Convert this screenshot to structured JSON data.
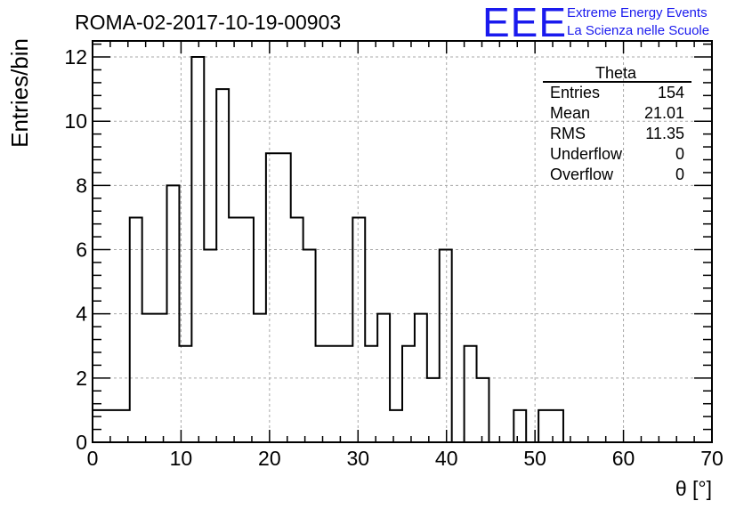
{
  "chart_data": {
    "type": "bar",
    "title": "ROMA-02-2017-10-19-00903",
    "xlabel": "θ [°]",
    "ylabel": "Entries/bin",
    "xlim": [
      0,
      70
    ],
    "ylim": [
      0,
      12.5
    ],
    "grid": true,
    "bin_width": 1.4,
    "bin_start": 0,
    "xticks": [
      0,
      10,
      20,
      30,
      40,
      50,
      60,
      70
    ],
    "yticks": [
      0,
      2,
      4,
      6,
      8,
      10,
      12
    ],
    "series": [
      {
        "values": [
          1,
          1,
          1,
          7,
          4,
          4,
          8,
          3,
          12,
          6,
          11,
          7,
          7,
          4,
          9,
          9,
          7,
          6,
          3,
          3,
          3,
          7,
          3,
          4,
          1,
          3,
          4,
          2,
          6,
          0,
          3,
          2,
          0,
          0,
          1,
          0,
          1,
          1,
          0,
          0,
          0,
          0,
          0,
          0,
          0,
          0,
          0,
          0,
          0,
          0
        ]
      }
    ],
    "stats_box": {
      "title": "Theta",
      "rows": [
        {
          "label": "Entries",
          "value": "154"
        },
        {
          "label": "Mean",
          "value": "21.01"
        },
        {
          "label": "RMS",
          "value": "11.35"
        },
        {
          "label": "Underflow",
          "value": "0"
        },
        {
          "label": "Overflow",
          "value": "0"
        }
      ]
    }
  },
  "branding": {
    "logo_text": "EEE",
    "line1": "Extreme Energy Events",
    "line2": "La Scienza nelle Scuole",
    "color": "#1a1aee"
  },
  "colors": {
    "histogram": "#000000",
    "grid": "#a8a8a8",
    "axes": "#000000"
  }
}
